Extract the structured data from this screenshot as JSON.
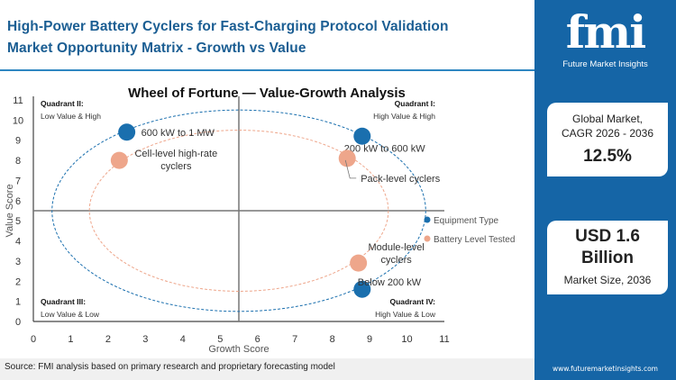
{
  "header": {
    "title_line1": "High-Power Battery Cyclers for Fast-Charging Protocol Validation",
    "title_line2": "Market Opportunity Matrix - Growth vs Value"
  },
  "sidebar": {
    "logo_text": "fmi",
    "logo_subtext": "Future Market Insights",
    "cagr_label_1": "Global Market,",
    "cagr_label_2": "CAGR 2026 - 2036",
    "cagr_value": "12.5%",
    "size_value_1": "USD 1.6",
    "size_value_2": "Billion",
    "size_label": "Market Size, 2036",
    "url": "www.futuremarketinsights.com"
  },
  "source": "Source: FMI analysis based on primary research and proprietary forecasting model",
  "colors": {
    "equipment": "#1a6fae",
    "battery": "#eea68b",
    "brand": "#1565a6",
    "title": "#1b5e93"
  },
  "chart_data": {
    "type": "scatter",
    "title": "Wheel of Fortune — Value-Growth  Analysis",
    "xlabel": "Growth Score",
    "ylabel": "Value Score",
    "xlim": [
      0,
      11
    ],
    "ylim": [
      0,
      11
    ],
    "xticks": [
      0,
      1,
      2,
      3,
      4,
      5,
      6,
      7,
      8,
      9,
      10,
      11
    ],
    "yticks": [
      0,
      1,
      2,
      3,
      4,
      5,
      6,
      7,
      8,
      9,
      10,
      11
    ],
    "divider": {
      "x": 5.5,
      "y": 5.5
    },
    "quadrants": [
      {
        "title": "Quadrant II:",
        "subtitle": "Low Value & High"
      },
      {
        "title": "Quadrant I:",
        "subtitle": "High Value & High"
      },
      {
        "title": "Quadrant III:",
        "subtitle": "Low Value & Low"
      },
      {
        "title": "Quadrant IV:",
        "subtitle": "High Value & Low"
      }
    ],
    "legend_position": "right",
    "series": [
      {
        "name": "Equipment Type",
        "color": "#1a6fae",
        "ellipse": {
          "cx": 5.5,
          "cy": 5.5,
          "rx": 5,
          "ry": 5
        },
        "points": [
          {
            "label": "600 kW to 1 MW",
            "x": 2.5,
            "y": 9.4
          },
          {
            "label": "200 kW to 600 kW",
            "x": 8.8,
            "y": 9.2
          },
          {
            "label": "Below 200 kW",
            "x": 8.8,
            "y": 1.6
          }
        ]
      },
      {
        "name": "Battery Level Tested",
        "color": "#eea68b",
        "ellipse": {
          "cx": 5.5,
          "cy": 5.5,
          "rx": 4,
          "ry": 4
        },
        "points": [
          {
            "label": "Cell-level high-rate cyclers",
            "x": 2.3,
            "y": 8.0
          },
          {
            "label": "Pack-level cyclers",
            "x": 8.4,
            "y": 8.1
          },
          {
            "label": "Module-level cyclers",
            "x": 8.7,
            "y": 2.9
          }
        ]
      }
    ]
  }
}
